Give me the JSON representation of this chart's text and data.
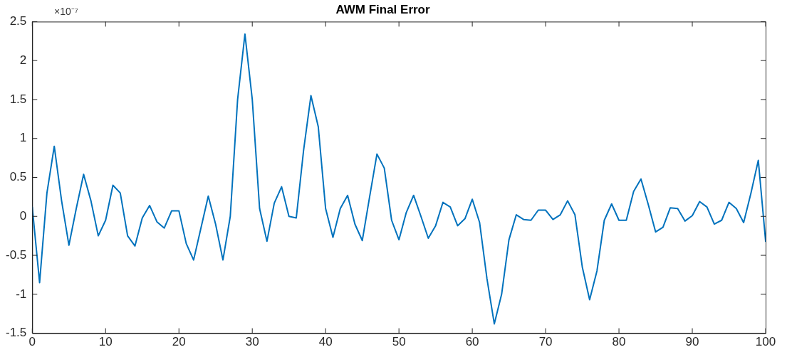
{
  "chart_data": {
    "type": "line",
    "title": "AWM Final Error",
    "annotations": [
      "×10⁻⁷"
    ],
    "x": [
      0,
      1,
      2,
      3,
      4,
      5,
      6,
      7,
      8,
      9,
      10,
      11,
      12,
      13,
      14,
      15,
      16,
      17,
      18,
      19,
      20,
      21,
      22,
      23,
      24,
      25,
      26,
      27,
      28,
      29,
      30,
      31,
      32,
      33,
      34,
      35,
      36,
      37,
      38,
      39,
      40,
      41,
      42,
      43,
      44,
      45,
      46,
      47,
      48,
      49,
      50,
      51,
      52,
      53,
      54,
      55,
      56,
      57,
      58,
      59,
      60,
      61,
      62,
      63,
      64,
      65,
      66,
      67,
      68,
      69,
      70,
      71,
      72,
      73,
      74,
      75,
      76,
      77,
      78,
      79,
      80,
      81,
      82,
      83,
      84,
      85,
      86,
      87,
      88,
      89,
      90,
      91,
      92,
      93,
      94,
      95,
      96,
      97,
      98,
      99,
      100
    ],
    "series": [
      {
        "color": "#0072bd",
        "values": [
          0.12,
          -0.85,
          0.3,
          0.9,
          0.2,
          -0.37,
          0.1,
          0.54,
          0.2,
          -0.25,
          -0.05,
          0.4,
          0.3,
          -0.25,
          -0.38,
          -0.02,
          0.14,
          -0.07,
          -0.15,
          0.07,
          0.07,
          -0.35,
          -0.56,
          -0.15,
          0.26,
          -0.1,
          -0.56,
          0.0,
          1.5,
          2.34,
          1.5,
          0.1,
          -0.32,
          0.17,
          0.38,
          0.0,
          -0.02,
          0.85,
          1.55,
          1.15,
          0.1,
          -0.27,
          0.1,
          0.27,
          -0.1,
          -0.31,
          0.25,
          0.8,
          0.62,
          -0.05,
          -0.3,
          0.05,
          0.27,
          0.0,
          -0.28,
          -0.12,
          0.18,
          0.12,
          -0.12,
          -0.03,
          0.22,
          -0.08,
          -0.8,
          -1.38,
          -1.0,
          -0.3,
          0.02,
          -0.04,
          -0.05,
          0.08,
          0.08,
          -0.04,
          0.02,
          0.2,
          0.02,
          -0.65,
          -1.07,
          -0.7,
          -0.05,
          0.16,
          -0.05,
          -0.05,
          0.32,
          0.48,
          0.15,
          -0.2,
          -0.14,
          0.11,
          0.1,
          -0.06,
          0.01,
          0.19,
          0.12,
          -0.1,
          -0.05,
          0.18,
          0.1,
          -0.08,
          0.3,
          0.72,
          -0.32
        ]
      }
    ],
    "xlim": [
      0,
      100
    ],
    "xticks": [
      0,
      10,
      20,
      30,
      40,
      50,
      60,
      70,
      80,
      90,
      100
    ],
    "ylim": [
      -1.5,
      2.5
    ],
    "yticks": [
      -1.5,
      -1,
      -0.5,
      0,
      0.5,
      1,
      1.5,
      2,
      2.5
    ],
    "grid": false,
    "legend": false,
    "marker": "none",
    "line_style": "solid"
  }
}
